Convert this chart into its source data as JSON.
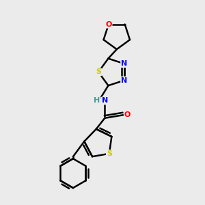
{
  "background_color": "#ebebeb",
  "bond_color": "#000000",
  "atom_colors": {
    "S": "#cccc00",
    "N": "#0000ff",
    "O": "#ff0000",
    "H": "#4a9a9a"
  },
  "lw": 1.8
}
